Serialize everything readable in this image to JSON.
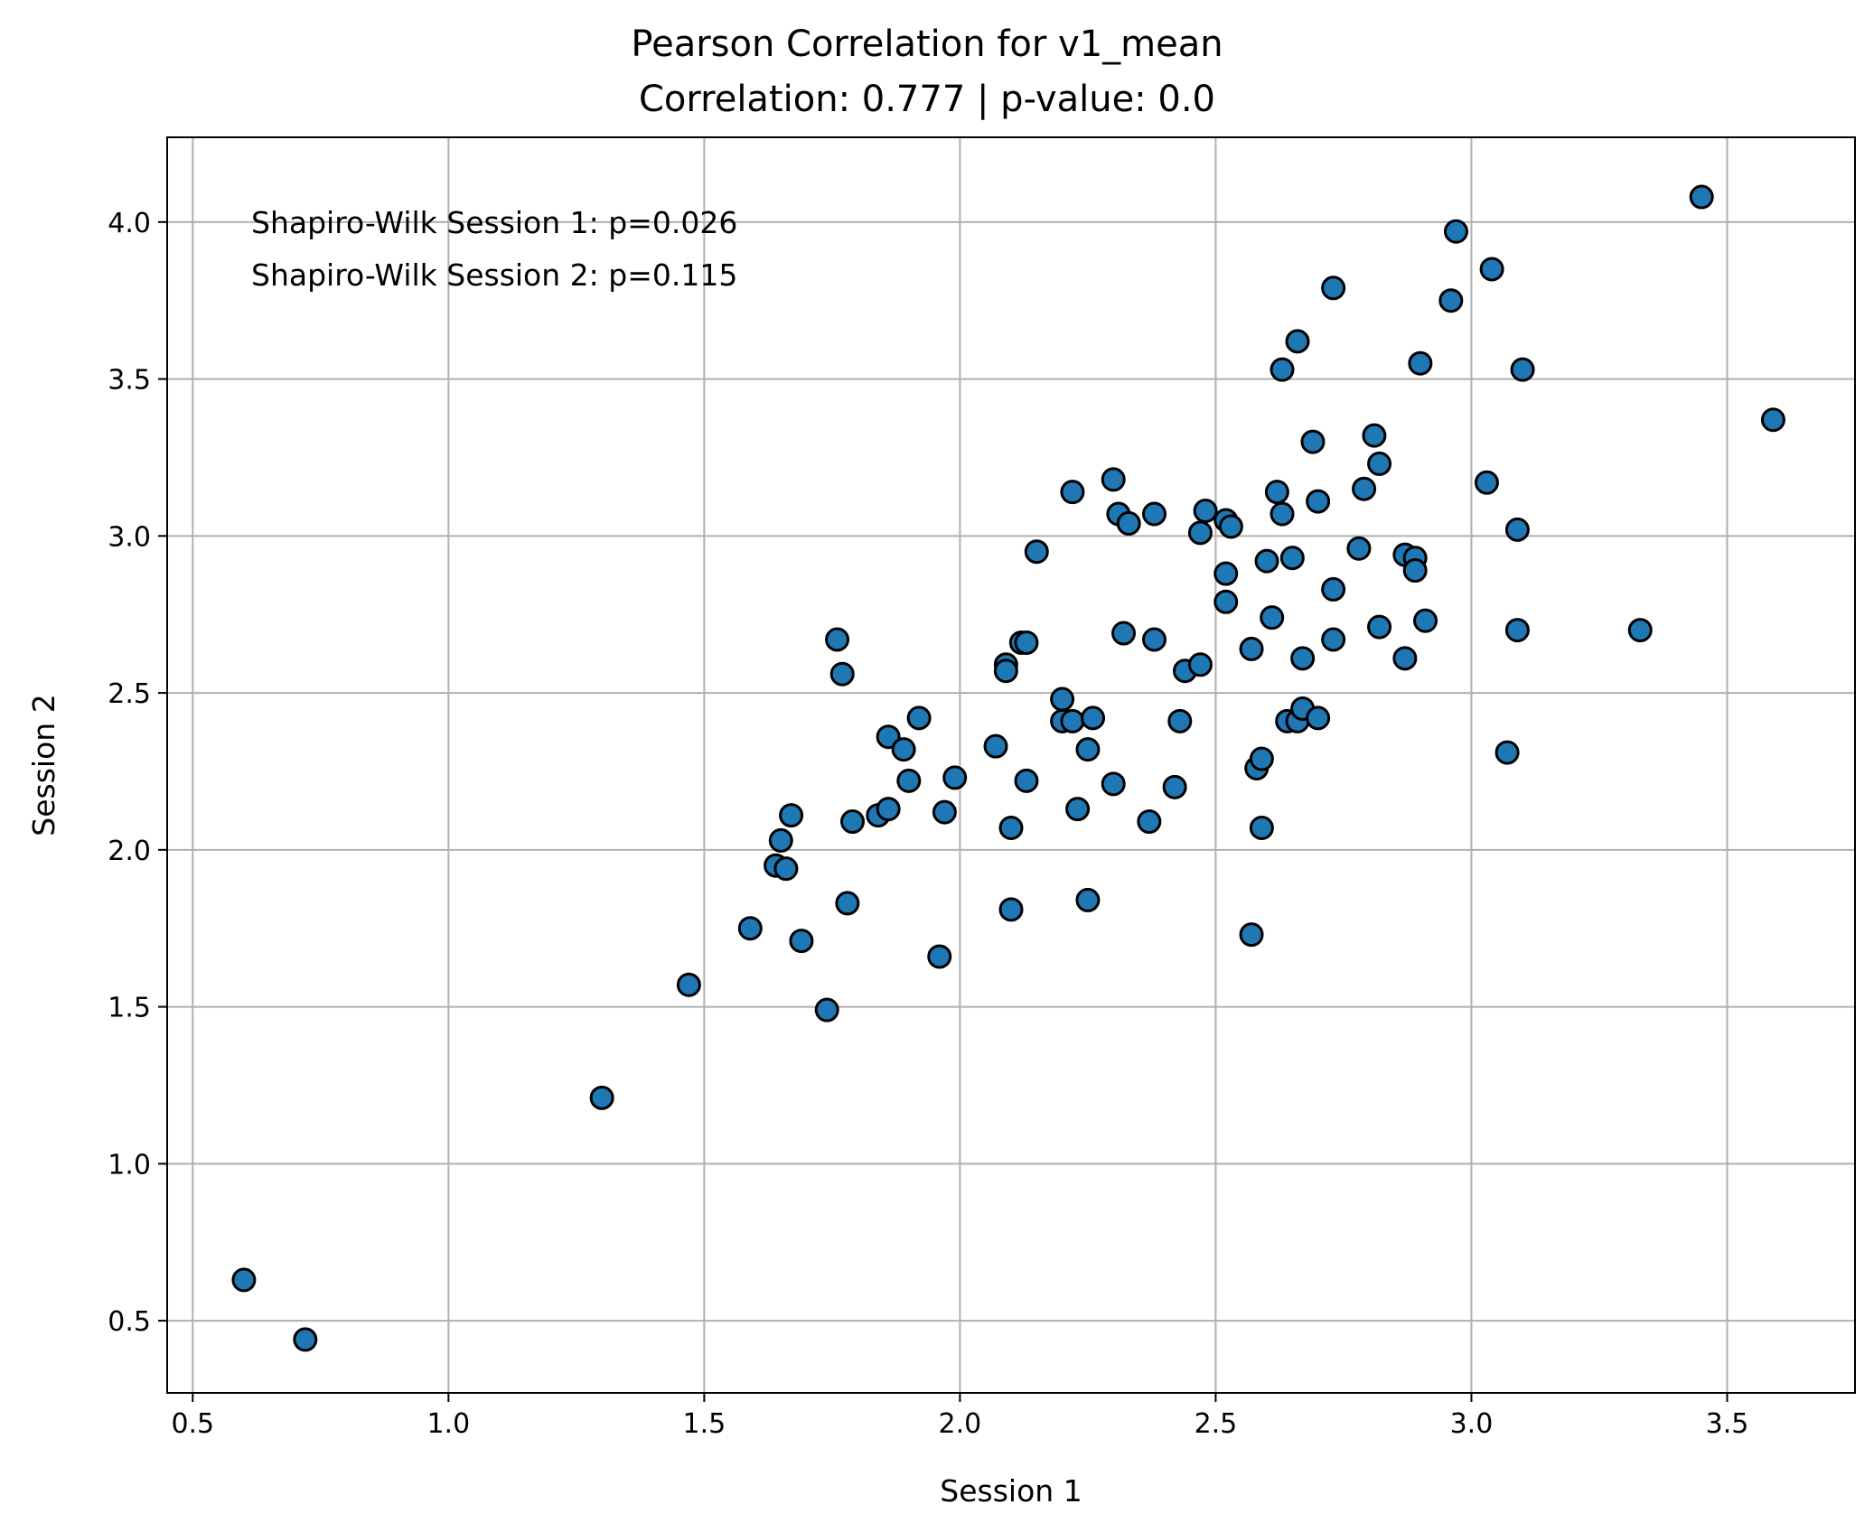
{
  "chart_data": {
    "type": "scatter",
    "title": "Pearson Correlation for v1_mean",
    "subtitle": "Correlation: 0.777 | p-value: 0.0",
    "xlabel": "Session 1",
    "ylabel": "Session 2",
    "xlim": [
      0.45,
      3.75
    ],
    "ylim": [
      0.27,
      4.27
    ],
    "xticks": [
      0.5,
      1.0,
      1.5,
      2.0,
      2.5,
      3.0,
      3.5
    ],
    "xtick_labels": [
      "0.5",
      "1.0",
      "1.5",
      "2.0",
      "2.5",
      "3.0",
      "3.5"
    ],
    "yticks": [
      0.5,
      1.0,
      1.5,
      2.0,
      2.5,
      3.0,
      3.5,
      4.0
    ],
    "ytick_labels": [
      "0.5",
      "1.0",
      "1.5",
      "2.0",
      "2.5",
      "3.0",
      "3.5",
      "4.0"
    ],
    "grid": true,
    "marker_color": "#1f77b4",
    "marker_edge": "#000000",
    "annotations": [
      "Shapiro-Wilk Session 1: p=0.026",
      "Shapiro-Wilk Session 2: p=0.115"
    ],
    "points": [
      [
        0.6,
        0.63
      ],
      [
        0.72,
        0.44
      ],
      [
        1.3,
        1.21
      ],
      [
        1.47,
        1.57
      ],
      [
        1.59,
        1.75
      ],
      [
        1.64,
        1.95
      ],
      [
        1.65,
        2.03
      ],
      [
        1.66,
        1.94
      ],
      [
        1.67,
        2.11
      ],
      [
        1.69,
        1.71
      ],
      [
        1.74,
        1.49
      ],
      [
        1.76,
        2.67
      ],
      [
        1.77,
        2.56
      ],
      [
        1.78,
        1.83
      ],
      [
        1.79,
        2.09
      ],
      [
        1.84,
        2.11
      ],
      [
        1.86,
        2.13
      ],
      [
        1.86,
        2.36
      ],
      [
        1.89,
        2.32
      ],
      [
        1.9,
        2.22
      ],
      [
        1.92,
        2.42
      ],
      [
        1.96,
        1.66
      ],
      [
        1.97,
        2.12
      ],
      [
        1.99,
        2.23
      ],
      [
        2.07,
        2.33
      ],
      [
        2.09,
        2.59
      ],
      [
        2.09,
        2.57
      ],
      [
        2.1,
        1.81
      ],
      [
        2.1,
        2.07
      ],
      [
        2.12,
        2.66
      ],
      [
        2.13,
        2.66
      ],
      [
        2.13,
        2.22
      ],
      [
        2.15,
        2.95
      ],
      [
        2.2,
        2.48
      ],
      [
        2.2,
        2.41
      ],
      [
        2.22,
        2.41
      ],
      [
        2.22,
        3.14
      ],
      [
        2.23,
        2.13
      ],
      [
        2.25,
        2.32
      ],
      [
        2.25,
        1.84
      ],
      [
        2.26,
        2.42
      ],
      [
        2.3,
        2.21
      ],
      [
        2.3,
        3.18
      ],
      [
        2.31,
        3.07
      ],
      [
        2.32,
        2.69
      ],
      [
        2.33,
        3.04
      ],
      [
        2.37,
        2.09
      ],
      [
        2.38,
        2.67
      ],
      [
        2.38,
        3.07
      ],
      [
        2.42,
        2.2
      ],
      [
        2.43,
        2.41
      ],
      [
        2.44,
        2.57
      ],
      [
        2.47,
        3.01
      ],
      [
        2.47,
        2.59
      ],
      [
        2.48,
        3.08
      ],
      [
        2.52,
        3.05
      ],
      [
        2.52,
        2.88
      ],
      [
        2.52,
        2.79
      ],
      [
        2.53,
        3.03
      ],
      [
        2.57,
        2.64
      ],
      [
        2.57,
        1.73
      ],
      [
        2.58,
        2.26
      ],
      [
        2.59,
        2.07
      ],
      [
        2.59,
        2.29
      ],
      [
        2.6,
        2.92
      ],
      [
        2.61,
        2.74
      ],
      [
        2.62,
        3.14
      ],
      [
        2.63,
        3.53
      ],
      [
        2.63,
        3.07
      ],
      [
        2.64,
        2.41
      ],
      [
        2.65,
        2.93
      ],
      [
        2.66,
        3.62
      ],
      [
        2.66,
        2.41
      ],
      [
        2.67,
        2.61
      ],
      [
        2.67,
        2.45
      ],
      [
        2.69,
        3.3
      ],
      [
        2.7,
        3.11
      ],
      [
        2.7,
        2.42
      ],
      [
        2.73,
        2.83
      ],
      [
        2.73,
        2.67
      ],
      [
        2.73,
        3.79
      ],
      [
        2.78,
        2.96
      ],
      [
        2.79,
        3.15
      ],
      [
        2.81,
        3.32
      ],
      [
        2.82,
        3.23
      ],
      [
        2.82,
        2.71
      ],
      [
        2.87,
        2.94
      ],
      [
        2.87,
        2.61
      ],
      [
        2.89,
        2.93
      ],
      [
        2.89,
        2.89
      ],
      [
        2.9,
        3.55
      ],
      [
        2.91,
        2.73
      ],
      [
        2.96,
        3.75
      ],
      [
        2.97,
        3.97
      ],
      [
        3.03,
        3.17
      ],
      [
        3.04,
        3.85
      ],
      [
        3.07,
        2.31
      ],
      [
        3.09,
        3.02
      ],
      [
        3.09,
        2.7
      ],
      [
        3.1,
        3.53
      ],
      [
        3.33,
        2.7
      ],
      [
        3.45,
        4.08
      ],
      [
        3.59,
        3.37
      ]
    ]
  }
}
